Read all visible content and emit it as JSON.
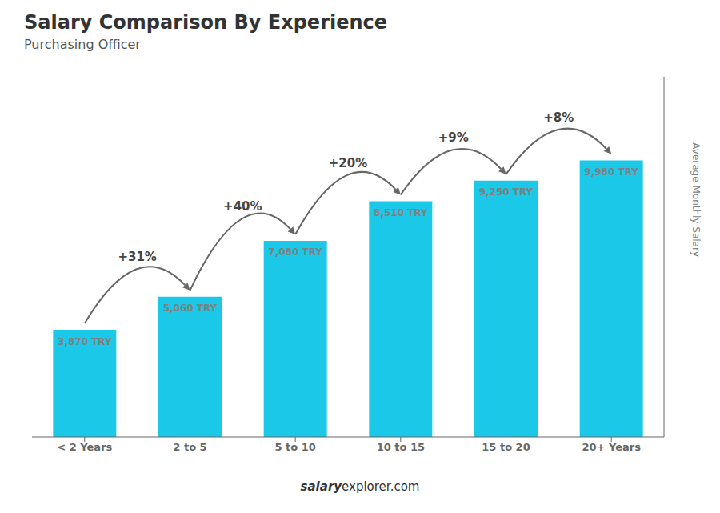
{
  "chart_data": {
    "type": "bar",
    "title": "Salary Comparison By Experience",
    "subtitle": "Purchasing Officer",
    "y_label": "Average Monthly Salary",
    "categories": [
      "< 2 Years",
      "2 to 5",
      "5 to 10",
      "10 to 15",
      "15 to 20",
      "20+ Years"
    ],
    "values": [
      3870,
      5060,
      7080,
      8510,
      9250,
      9980
    ],
    "value_labels": [
      "3,870 TRY",
      "5,060 TRY",
      "7,080 TRY",
      "8,510 TRY",
      "9,250 TRY",
      "9,980 TRY"
    ],
    "data_labels": true,
    "color": "#1BC8E8",
    "ylim": [
      0,
      13000
    ],
    "tick_labels": "x",
    "grid": false,
    "annotations": [
      "+31%",
      "+40%",
      "+20%",
      "+9%",
      "+8%"
    ],
    "footer": [
      "salary",
      "explorer.com"
    ]
  }
}
